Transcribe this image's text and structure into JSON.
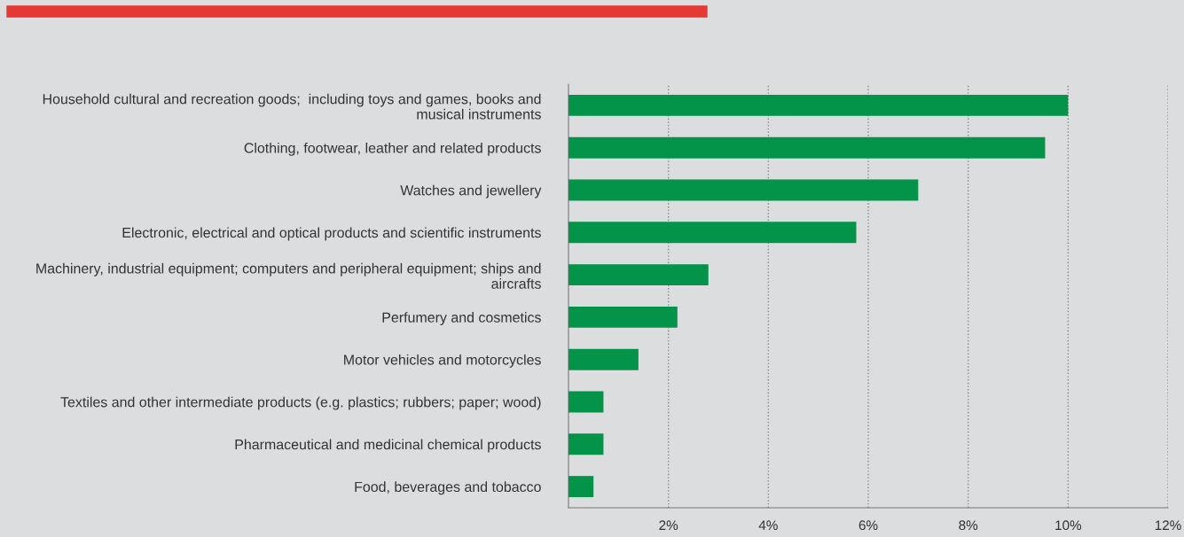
{
  "chart_data": {
    "type": "bar",
    "orientation": "horizontal",
    "categories": [
      "Household cultural and recreation goods;  including toys and games, books and\nmusical instruments",
      "Clothing, footwear, leather and related products",
      "Watches and jewellery",
      "Electronic, electrical and optical products and scientific instruments",
      "Machinery, industrial equipment; computers and peripheral equipment; ships and\naircrafts",
      "Perfumery and cosmetics",
      "Motor vehicles and motorcycles",
      "Textiles and other intermediate products (e.g. plastics; rubbers; paper; wood)",
      "Pharmaceutical and medicinal chemical products",
      "Food, beverages and tobacco"
    ],
    "values": [
      10.0,
      9.54,
      7.0,
      5.76,
      2.8,
      2.18,
      1.4,
      0.7,
      0.7,
      0.5
    ],
    "color": "#03944a",
    "xlim": [
      0,
      12
    ],
    "xticks": [
      {
        "value": 2,
        "label": "2%"
      },
      {
        "value": 4,
        "label": "4%"
      },
      {
        "value": 6,
        "label": "6%"
      },
      {
        "value": 8,
        "label": "8%"
      },
      {
        "value": 10,
        "label": "10%"
      },
      {
        "value": 12,
        "label": "12%"
      }
    ],
    "grid": "x",
    "legend": false
  }
}
